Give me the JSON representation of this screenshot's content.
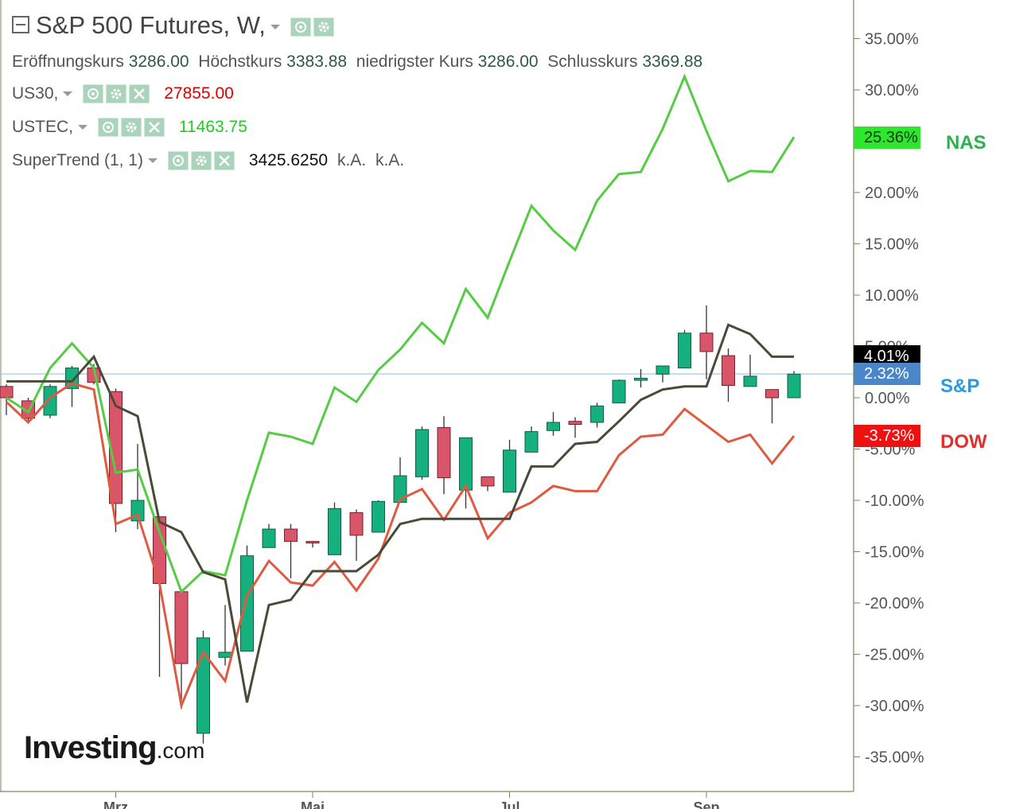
{
  "header": {
    "title": "S&P 500 Futures, W,",
    "ohlc": [
      {
        "label": "Eröffnungskurs",
        "value": "3286.00"
      },
      {
        "label": "Höchstkurs",
        "value": "3383.88"
      },
      {
        "label": "niedrigster Kurs",
        "value": "3286.00"
      },
      {
        "label": "Schlusskurs",
        "value": "3369.88"
      }
    ]
  },
  "indicators": [
    {
      "name": "US30,",
      "value": "27855.00",
      "color": "#e00000"
    },
    {
      "name": "USTEC,",
      "value": "11463.75",
      "color": "#22cc22"
    },
    {
      "name": "SuperTrend (1, 1)",
      "value": "3425.6250",
      "extra1": "k.A.",
      "extra2": "k.A.",
      "color": "#111111"
    }
  ],
  "price_tags": [
    {
      "text": "25.36%",
      "bg": "#2ee62e",
      "color": "#0b3d0b",
      "y": 25.36
    },
    {
      "text": "4.01%",
      "bg": "#000000",
      "color": "#ffffff",
      "y": 4.01
    },
    {
      "text": "2.32%",
      "bg": "#4a86c8",
      "color": "#ffffff",
      "y": 2.32
    },
    {
      "text": "-3.73%",
      "bg": "#ee1111",
      "color": "#ffffff",
      "y": -3.73
    }
  ],
  "side_labels": [
    {
      "text": "NAS",
      "color": "#2bb24c"
    },
    {
      "text": "S&P",
      "color": "#2a9bd8"
    },
    {
      "text": "DOW",
      "color": "#e03030"
    }
  ],
  "logo": {
    "main": "Investing",
    "suffix": ".com"
  },
  "chart_data": {
    "type": "line",
    "y_ticks": [
      "35.00%",
      "30.00%",
      "25.00%",
      "20.00%",
      "15.00%",
      "10.00%",
      "5.00%",
      "0.00%",
      "-5.00%",
      "-10.00%",
      "-15.00%",
      "-20.00%",
      "-25.00%",
      "-30.00%",
      "-35.00%"
    ],
    "y_tick_values": [
      35,
      30,
      25,
      20,
      15,
      10,
      5,
      0,
      -5,
      -10,
      -15,
      -20,
      -25,
      -30,
      -35
    ],
    "ylim": [
      -38.5,
      39
    ],
    "x_ticks": [
      {
        "label": "Mrz",
        "week": 5
      },
      {
        "label": "Mai",
        "week": 14
      },
      {
        "label": "Jul",
        "week": 23
      },
      {
        "label": "Sep",
        "week": 32
      }
    ],
    "week_count": 37,
    "reference_line": 2.32,
    "candles": [
      {
        "o": 1.1,
        "h": 1.3,
        "l": -1.7,
        "c": 0.0
      },
      {
        "o": -0.3,
        "h": 0.0,
        "l": -2.3,
        "c": -2.0
      },
      {
        "o": -1.7,
        "h": 1.3,
        "l": -2.0,
        "c": 1.1
      },
      {
        "o": 0.9,
        "h": 3.1,
        "l": -0.9,
        "c": 2.9
      },
      {
        "o": 2.9,
        "h": 3.3,
        "l": 1.3,
        "c": 1.5
      },
      {
        "o": 0.6,
        "h": 0.9,
        "l": -13.1,
        "c": -10.3
      },
      {
        "o": -12.0,
        "h": -4.5,
        "l": -12.8,
        "c": -10.0
      },
      {
        "o": -11.6,
        "h": -11.6,
        "l": -27.2,
        "c": -18.1
      },
      {
        "o": -18.9,
        "h": -18.9,
        "l": -30.3,
        "c": -25.9
      },
      {
        "o": -32.7,
        "h": -22.7,
        "l": -33.7,
        "c": -23.4
      },
      {
        "o": -25.3,
        "h": -20.2,
        "l": -26.1,
        "c": -24.8
      },
      {
        "o": -24.7,
        "h": -14.4,
        "l": -24.7,
        "c": -15.4
      },
      {
        "o": -14.6,
        "h": -12.3,
        "l": -14.6,
        "c": -12.8
      },
      {
        "o": -12.8,
        "h": -12.3,
        "l": -17.6,
        "c": -14.0
      },
      {
        "o": -14.0,
        "h": -14.0,
        "l": -14.6,
        "c": -14.1
      },
      {
        "o": -15.3,
        "h": -10.2,
        "l": -15.3,
        "c": -10.8
      },
      {
        "o": -11.2,
        "h": -10.9,
        "l": -15.9,
        "c": -13.4
      },
      {
        "o": -13.1,
        "h": -10.0,
        "l": -13.1,
        "c": -10.1
      },
      {
        "o": -10.2,
        "h": -5.8,
        "l": -10.2,
        "c": -7.6
      },
      {
        "o": -7.7,
        "h": -2.8,
        "l": -8.0,
        "c": -3.1
      },
      {
        "o": -2.9,
        "h": -1.8,
        "l": -9.4,
        "c": -7.8
      },
      {
        "o": -9.0,
        "h": -3.9,
        "l": -10.8,
        "c": -3.9
      },
      {
        "o": -7.7,
        "h": -7.7,
        "l": -9.1,
        "c": -8.6
      },
      {
        "o": -9.2,
        "h": -4.1,
        "l": -9.2,
        "c": -5.1
      },
      {
        "o": -5.3,
        "h": -2.8,
        "l": -5.3,
        "c": -3.3
      },
      {
        "o": -3.2,
        "h": -1.4,
        "l": -3.7,
        "c": -2.4
      },
      {
        "o": -2.3,
        "h": -1.9,
        "l": -3.9,
        "c": -2.6
      },
      {
        "o": -2.4,
        "h": -0.5,
        "l": -2.9,
        "c": -0.8
      },
      {
        "o": -0.5,
        "h": 1.8,
        "l": -0.5,
        "c": 1.7
      },
      {
        "o": 1.7,
        "h": 2.8,
        "l": 1.0,
        "c": 1.9
      },
      {
        "o": 2.3,
        "h": 2.8,
        "l": 1.5,
        "c": 3.1
      },
      {
        "o": 2.9,
        "h": 6.6,
        "l": 2.9,
        "c": 6.3
      },
      {
        "o": 6.3,
        "h": 9.0,
        "l": 1.8,
        "c": 4.5
      },
      {
        "o": 4.1,
        "h": 4.8,
        "l": -0.4,
        "c": 1.2
      },
      {
        "o": 1.1,
        "h": 4.2,
        "l": 1.1,
        "c": 2.1
      },
      {
        "o": 0.8,
        "h": 0.8,
        "l": -2.5,
        "c": 0.0
      },
      {
        "o": 0.0,
        "h": 2.6,
        "l": 0.0,
        "c": 2.3
      }
    ],
    "series": [
      {
        "name": "NAS",
        "color": "#55cc44",
        "values": [
          0.0,
          -1.4,
          2.9,
          5.3,
          2.9,
          -7.3,
          -7.0,
          -13.1,
          -18.9,
          -16.9,
          -17.3,
          -10.0,
          -3.4,
          -3.8,
          -4.5,
          1.0,
          -0.4,
          2.7,
          4.7,
          7.3,
          5.3,
          10.6,
          7.8,
          13.3,
          18.7,
          16.3,
          14.4,
          19.2,
          21.8,
          22.0,
          26.2,
          31.3,
          26.0,
          21.1,
          22.1,
          22.0,
          25.4
        ]
      },
      {
        "name": "DOW",
        "color": "#e05a42",
        "values": [
          -0.4,
          -2.4,
          0.0,
          1.4,
          0.8,
          -12.3,
          -11.4,
          -18.1,
          -30.0,
          -24.8,
          -27.6,
          -19.3,
          -15.9,
          -18.0,
          -18.3,
          -16.0,
          -18.8,
          -15.7,
          -9.9,
          -8.9,
          -11.9,
          -8.6,
          -13.7,
          -11.2,
          -10.2,
          -8.6,
          -9.1,
          -9.1,
          -5.6,
          -3.8,
          -3.6,
          -1.1,
          -2.7,
          -4.3,
          -3.6,
          -6.4,
          -3.73
        ]
      },
      {
        "name": "SuperTrend",
        "color": "#4a4a38",
        "values": [
          1.6,
          1.6,
          1.6,
          1.6,
          4.0,
          -0.8,
          -1.8,
          -12.1,
          -13.1,
          -17.0,
          -17.7,
          -29.7,
          -20.2,
          -19.7,
          -16.9,
          -16.9,
          -16.9,
          -15.3,
          -12.3,
          -11.8,
          -11.8,
          -11.8,
          -11.8,
          -11.8,
          -6.7,
          -6.7,
          -4.5,
          -4.3,
          -2.3,
          -0.2,
          0.8,
          1.1,
          1.1,
          7.1,
          6.2,
          4.0,
          4.0
        ]
      }
    ]
  }
}
